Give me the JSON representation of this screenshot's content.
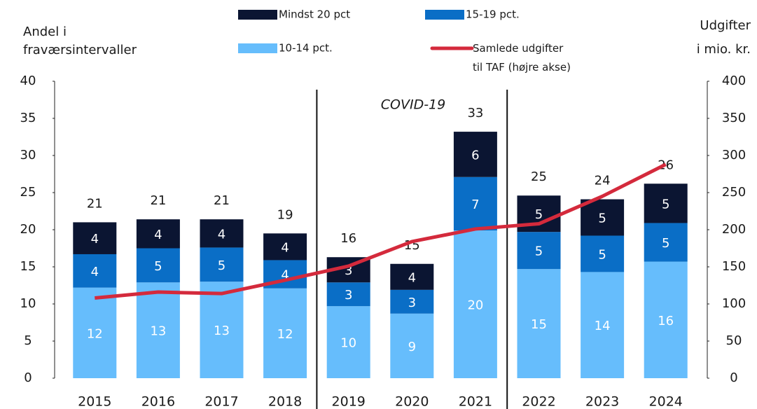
{
  "chart_data": {
    "type": "bar",
    "categories": [
      "2015",
      "2016",
      "2017",
      "2018",
      "2019",
      "2020",
      "2021",
      "2022",
      "2023",
      "2024"
    ],
    "ylabel": [
      "Andel i",
      "fraværsintervaller"
    ],
    "y2label": [
      "Udgifter",
      "i mio. kr."
    ],
    "annotation": "COVID-19",
    "ylim": [
      0,
      40
    ],
    "yticks": [
      0,
      5,
      10,
      15,
      20,
      25,
      30,
      35,
      40
    ],
    "y2lim": [
      0,
      400
    ],
    "y2ticks": [
      0,
      50,
      100,
      150,
      200,
      250,
      300,
      350,
      400
    ],
    "series": [
      {
        "name": "10-14 pct.",
        "color": "#66bdfc",
        "values": [
          12.2,
          12.9,
          13.0,
          12.1,
          9.7,
          8.7,
          19.9,
          14.7,
          14.3,
          15.7
        ],
        "value_labels": [
          "12",
          "13",
          "13",
          "12",
          "10",
          "9",
          "20",
          "15",
          "14",
          "16"
        ]
      },
      {
        "name": "15-19 pct.",
        "color": "#0a6ec6",
        "values": [
          4.5,
          4.6,
          4.6,
          3.8,
          3.2,
          3.2,
          7.2,
          5.0,
          4.9,
          5.2
        ],
        "value_labels": [
          "4",
          "5",
          "5",
          "4",
          "3",
          "3",
          "7",
          "5",
          "5",
          "5"
        ]
      },
      {
        "name": "Mindst 20 pct",
        "color": "#0b1532",
        "values": [
          4.3,
          3.9,
          3.8,
          3.6,
          3.4,
          3.5,
          6.1,
          4.9,
          4.9,
          5.3
        ],
        "value_labels": [
          "4",
          "4",
          "4",
          "4",
          "3",
          "4",
          "6",
          "5",
          "5",
          "5"
        ]
      },
      {
        "name": "Samlede udgifter\ntil TAF (højre akse)",
        "color": "#d42a3c",
        "type": "line",
        "axis": "y2",
        "values": [
          108,
          116,
          114,
          132,
          151,
          184,
          201,
          208,
          245,
          288
        ]
      }
    ],
    "total_labels": [
      "21",
      "21",
      "21",
      "19",
      "16",
      "15",
      "33",
      "25",
      "24",
      "26"
    ]
  }
}
